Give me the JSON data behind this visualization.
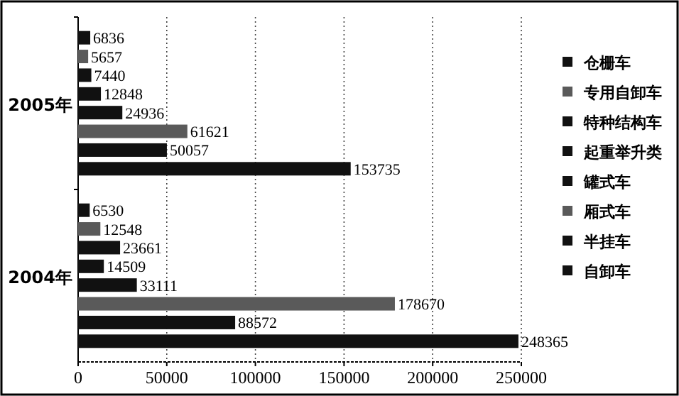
{
  "chart_data": {
    "type": "bar",
    "orientation": "horizontal",
    "categories": [
      "2005年",
      "2004年"
    ],
    "series": [
      {
        "name": "仓栅车",
        "color": "#111111",
        "values": [
          6836,
          6530
        ]
      },
      {
        "name": "专用自卸车",
        "color": "#5a5a5a",
        "values": [
          5657,
          12548
        ]
      },
      {
        "name": "特种结构车",
        "color": "#111111",
        "values": [
          7440,
          23661
        ]
      },
      {
        "name": "起重举升类",
        "color": "#111111",
        "values": [
          12848,
          14509
        ]
      },
      {
        "name": "罐式车",
        "color": "#111111",
        "values": [
          24936,
          33111
        ]
      },
      {
        "name": "厢式车",
        "color": "#5a5a5a",
        "values": [
          61621,
          178670
        ]
      },
      {
        "name": "半挂车",
        "color": "#111111",
        "values": [
          50057,
          88572
        ]
      },
      {
        "name": "自卸车",
        "color": "#111111",
        "values": [
          153735,
          248365
        ]
      }
    ],
    "xlim": [
      0,
      250000
    ],
    "xticks": [
      0,
      50000,
      100000,
      150000,
      200000,
      250000
    ],
    "grid": "x",
    "legend": "right",
    "data_labels": true
  }
}
